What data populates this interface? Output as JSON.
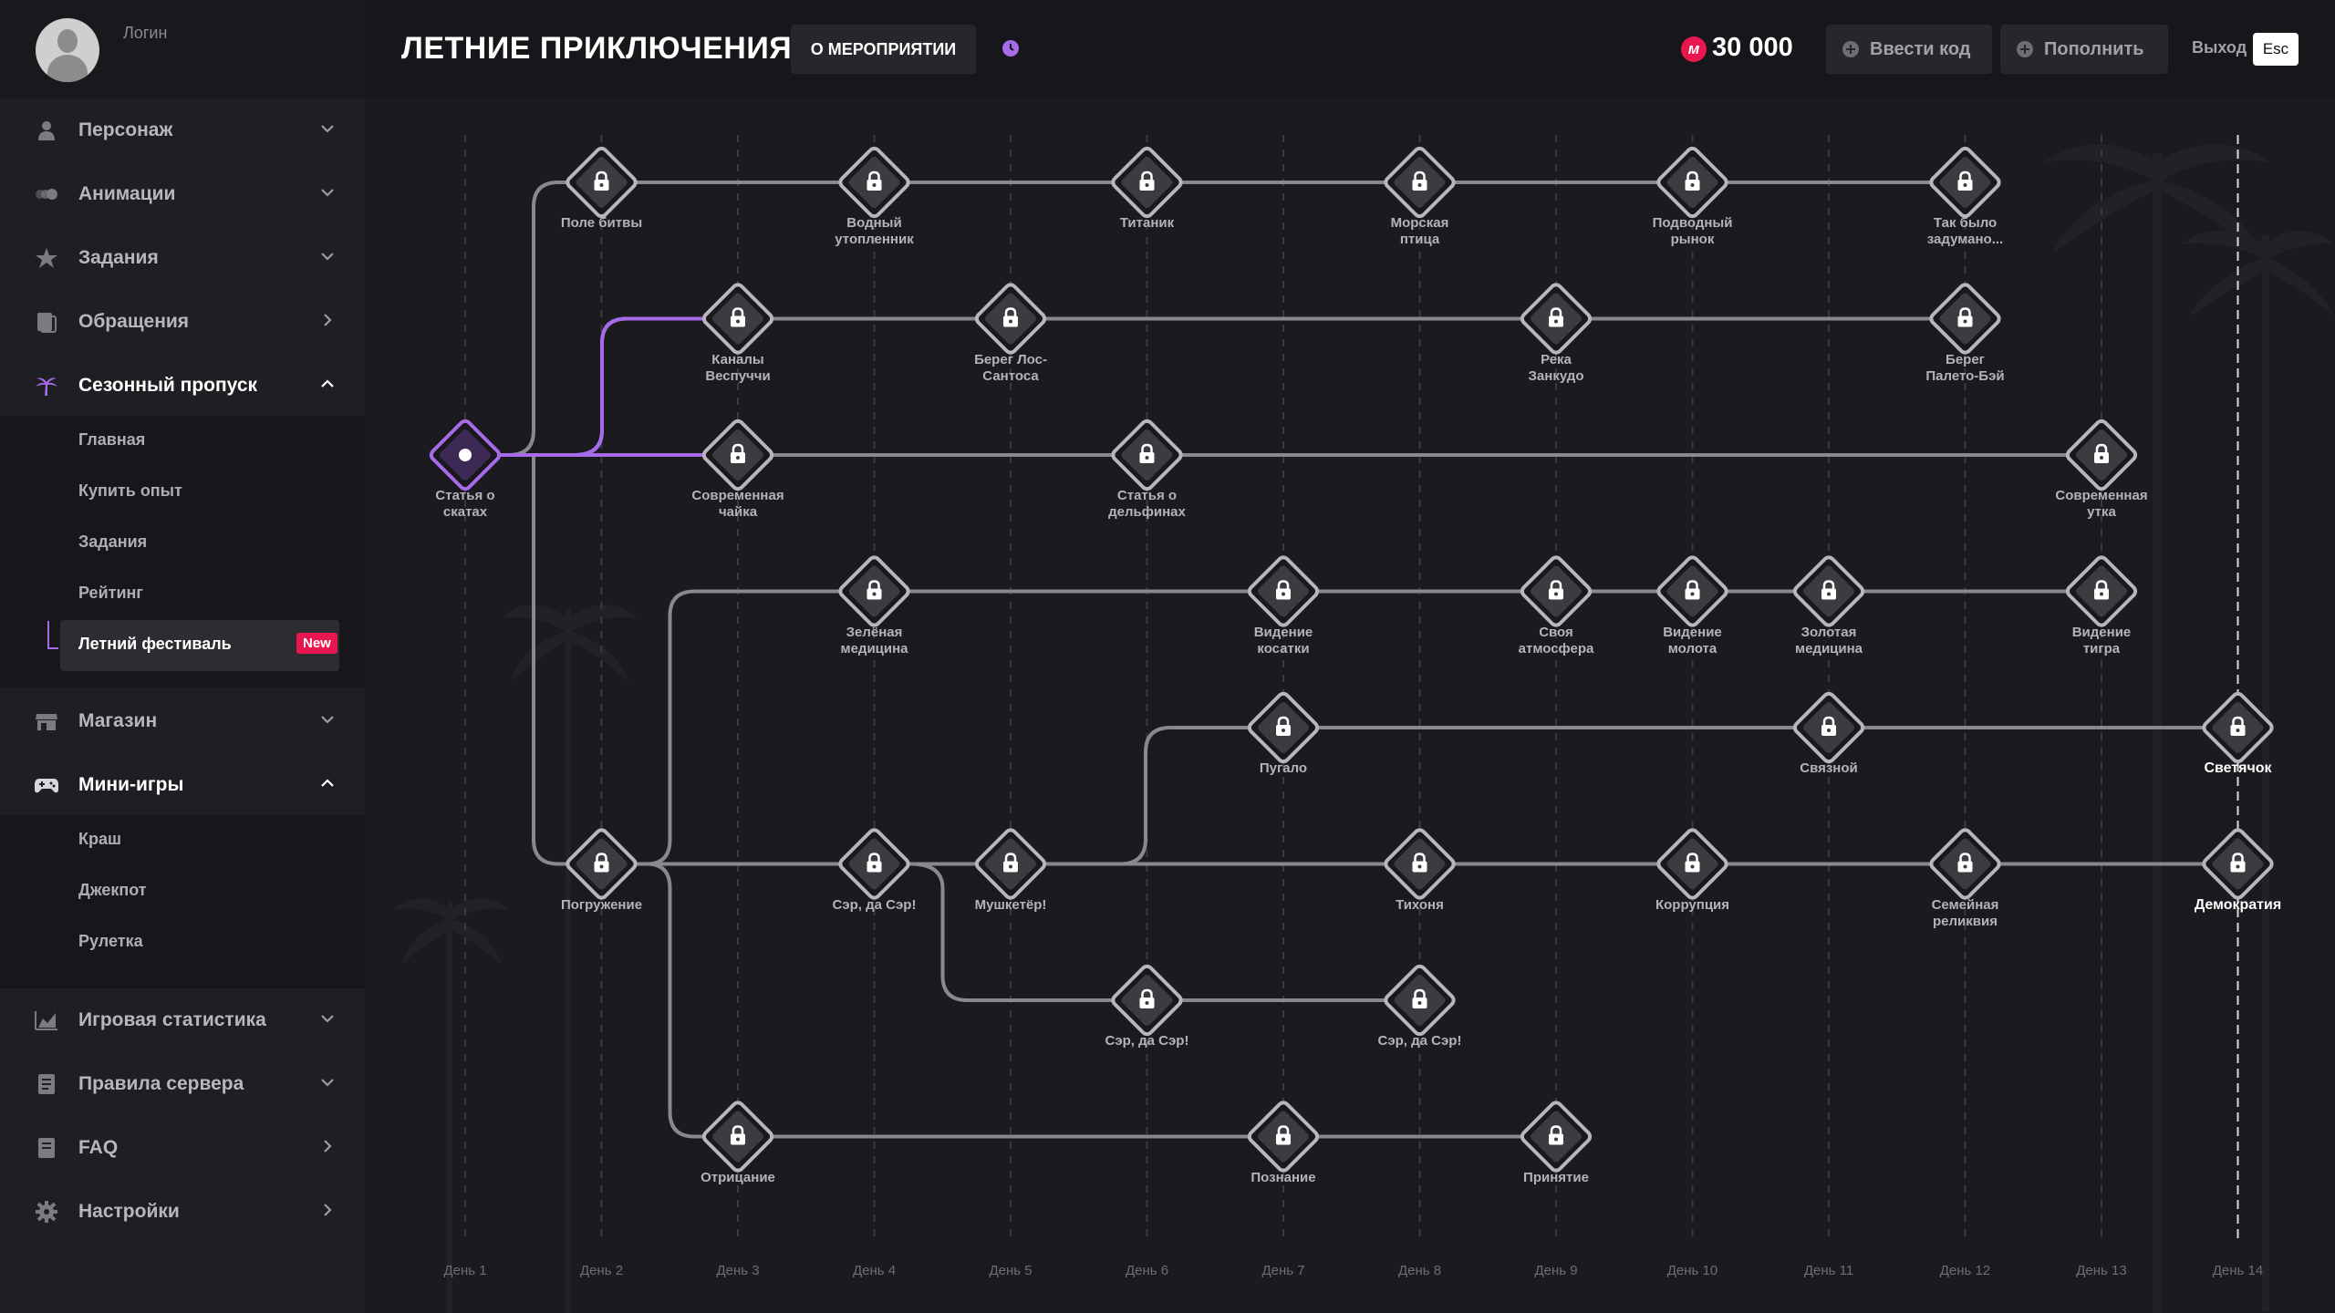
{
  "profile": {
    "login": "Логин"
  },
  "sidebar": {
    "items": [
      {
        "label": "Персонаж",
        "icon": "person-icon"
      },
      {
        "label": "Анимации",
        "icon": "animation-icon"
      },
      {
        "label": "Задания",
        "icon": "star-icon"
      },
      {
        "label": "Обращения",
        "icon": "ticket-icon"
      },
      {
        "label": "Сезонный пропуск",
        "icon": "palm-icon"
      },
      {
        "label": "Магазин",
        "icon": "shop-icon"
      },
      {
        "label": "Мини-игры",
        "icon": "gamepad-icon"
      },
      {
        "label": "Игровая статистика",
        "icon": "stats-icon"
      },
      {
        "label": "Правила сервера",
        "icon": "rules-icon"
      },
      {
        "label": "FAQ",
        "icon": "faq-icon"
      },
      {
        "label": "Настройки",
        "icon": "settings-icon"
      }
    ],
    "season_sub": [
      "Главная",
      "Купить опыт",
      "Задания",
      "Рейтинг",
      "Летний фестиваль"
    ],
    "new_badge": "New",
    "games_sub": [
      "Краш",
      "Джекпот",
      "Рулетка"
    ]
  },
  "header": {
    "title": "ЛЕТНИЕ ПРИКЛЮЧЕНИЯ",
    "about": "О МЕРОПРИЯТИИ",
    "currency_symbol": "м",
    "balance": "30 000",
    "code_btn": "Ввести код",
    "topup_btn": "Пополнить",
    "exit": "Выход",
    "esc": "Esc"
  },
  "days": [
    "День 1",
    "День 2",
    "День 3",
    "День 4",
    "День 5",
    "День 6",
    "День 7",
    "День 8",
    "День 9",
    "День 10",
    "День 11",
    "День 12",
    "День 13",
    "День 14"
  ],
  "nodes": [
    {
      "d": 1,
      "r": 3,
      "label": "Статья о\nскатах",
      "state": "current"
    },
    {
      "d": 2,
      "r": 1,
      "label": "Поле битвы",
      "state": "locked"
    },
    {
      "d": 4,
      "r": 1,
      "label": "Водный\nутопленник",
      "state": "locked"
    },
    {
      "d": 6,
      "r": 1,
      "label": "Титаник",
      "state": "locked"
    },
    {
      "d": 8,
      "r": 1,
      "label": "Морская\nптица",
      "state": "locked"
    },
    {
      "d": 10,
      "r": 1,
      "label": "Подводный\nрынок",
      "state": "locked"
    },
    {
      "d": 12,
      "r": 1,
      "label": "Так было\nзадумано...",
      "state": "locked"
    },
    {
      "d": 3,
      "r": 2,
      "label": "Каналы\nВеспуччи",
      "state": "locked"
    },
    {
      "d": 5,
      "r": 2,
      "label": "Берег Лос-\nСантоса",
      "state": "locked"
    },
    {
      "d": 9,
      "r": 2,
      "label": "Река\nЗанкудо",
      "state": "locked"
    },
    {
      "d": 12,
      "r": 2,
      "label": "Берег\nПалето-Бэй",
      "state": "locked"
    },
    {
      "d": 3,
      "r": 3,
      "label": "Современная\nчайка",
      "state": "locked"
    },
    {
      "d": 6,
      "r": 3,
      "label": "Статья о\nдельфинах",
      "state": "locked"
    },
    {
      "d": 13,
      "r": 3,
      "label": "Современная\nутка",
      "state": "locked"
    },
    {
      "d": 4,
      "r": 4,
      "label": "Зелёная\nмедицина",
      "state": "locked"
    },
    {
      "d": 7,
      "r": 4,
      "label": "Видение\nкосатки",
      "state": "locked"
    },
    {
      "d": 9,
      "r": 4,
      "label": "Своя\nатмосфера",
      "state": "locked"
    },
    {
      "d": 10,
      "r": 4,
      "label": "Видение\nмолота",
      "state": "locked"
    },
    {
      "d": 11,
      "r": 4,
      "label": "Золотая\nмедицина",
      "state": "locked"
    },
    {
      "d": 13,
      "r": 4,
      "label": "Видение\nтигра",
      "state": "locked"
    },
    {
      "d": 7,
      "r": 5,
      "label": "Пугало",
      "state": "locked"
    },
    {
      "d": 11,
      "r": 5,
      "label": "Связной",
      "state": "locked"
    },
    {
      "d": 14,
      "r": 5,
      "label": "Светячок",
      "state": "final"
    },
    {
      "d": 2,
      "r": 6,
      "label": "Погружение",
      "state": "locked"
    },
    {
      "d": 4,
      "r": 6,
      "label": "Сэр, да Сэр!",
      "state": "locked"
    },
    {
      "d": 5,
      "r": 6,
      "label": "Мушкетёр!",
      "state": "locked"
    },
    {
      "d": 8,
      "r": 6,
      "label": "Тихоня",
      "state": "locked"
    },
    {
      "d": 10,
      "r": 6,
      "label": "Коррупция",
      "state": "locked"
    },
    {
      "d": 12,
      "r": 6,
      "label": "Семейная\nреликвия",
      "state": "locked"
    },
    {
      "d": 14,
      "r": 6,
      "label": "Демократия",
      "state": "final"
    },
    {
      "d": 6,
      "r": 7,
      "label": "Сэр, да Сэр!",
      "state": "locked"
    },
    {
      "d": 8,
      "r": 7,
      "label": "Сэр, да Сэр!",
      "state": "locked"
    },
    {
      "d": 3,
      "r": 8,
      "label": "Отрицание",
      "state": "locked"
    },
    {
      "d": 7,
      "r": 8,
      "label": "Познание",
      "state": "locked"
    },
    {
      "d": 9,
      "r": 8,
      "label": "Принятие",
      "state": "locked"
    }
  ],
  "colors": {
    "accent": "#a66be8",
    "badge": "#e8174f",
    "path": "#8a888f"
  }
}
